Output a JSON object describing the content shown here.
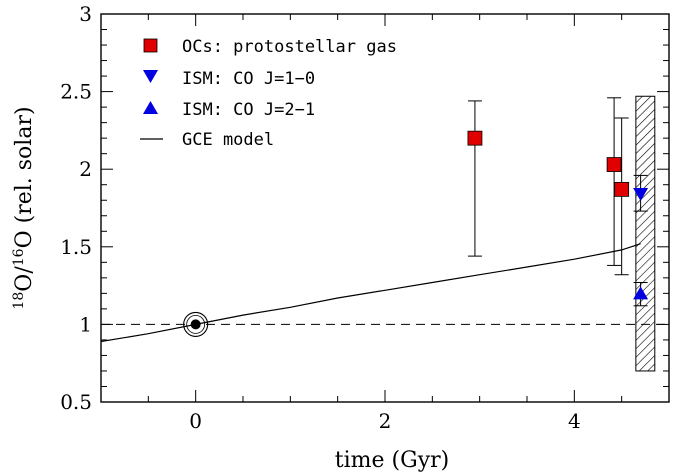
{
  "chart_data": {
    "type": "scatter",
    "xlabel": "time (Gyr)",
    "ylabel_parts": {
      "iso1_mass": "18",
      "iso1_elem": "O/",
      "iso2_mass": "16",
      "iso2_elem": "O",
      "unit": " (rel. solar)"
    },
    "xlim": [
      -1,
      5
    ],
    "ylim": [
      0.5,
      3
    ],
    "x_ticks": [
      0,
      2,
      4
    ],
    "y_ticks": [
      0.5,
      1,
      1.5,
      2,
      2.5,
      3
    ],
    "x_tick_labels": [
      "0",
      "2",
      "4"
    ],
    "y_tick_labels": [
      "0.5",
      "1",
      "1.5",
      "2",
      "2.5",
      "3"
    ],
    "reference_line": {
      "y": 1,
      "style": "dashed"
    },
    "sun_point": {
      "x": 0,
      "y": 1,
      "symbol": "sun"
    },
    "series": [
      {
        "name": "OCs: protostellar gas",
        "marker": "square",
        "color": "#e00000",
        "points": [
          {
            "x": 2.95,
            "y": 2.2,
            "yerr_low": 1.44,
            "yerr_high": 2.44
          },
          {
            "x": 4.42,
            "y": 2.03,
            "yerr_low": 1.38,
            "yerr_high": 2.46
          },
          {
            "x": 4.5,
            "y": 1.87,
            "yerr_low": 1.32,
            "yerr_high": 2.33
          }
        ]
      },
      {
        "name": "ISM: CO J=1−0",
        "marker": "triangle-down",
        "color": "#0000e0",
        "points": [
          {
            "x": 4.7,
            "y": 1.84,
            "yerr_low": 1.73,
            "yerr_high": 1.96
          }
        ]
      },
      {
        "name": "ISM: CO J=2−1",
        "marker": "triangle-up",
        "color": "#0000e0",
        "points": [
          {
            "x": 4.7,
            "y": 1.2,
            "yerr_low": 1.12,
            "yerr_high": 1.27
          }
        ]
      },
      {
        "name": "GCE model",
        "type": "line",
        "color": "#000000",
        "x": [
          -1,
          -0.5,
          0,
          0.5,
          1,
          1.5,
          2,
          2.5,
          3,
          3.5,
          4,
          4.5,
          4.7
        ],
        "y": [
          0.89,
          0.94,
          1.0,
          1.06,
          1.11,
          1.17,
          1.22,
          1.27,
          1.32,
          1.37,
          1.42,
          1.48,
          1.52
        ]
      }
    ],
    "shaded_band": {
      "x0": 4.65,
      "x1": 4.85,
      "y0": 0.7,
      "y1": 2.47,
      "pattern": "hatched"
    },
    "legend_position": "top-left",
    "grid": false
  }
}
